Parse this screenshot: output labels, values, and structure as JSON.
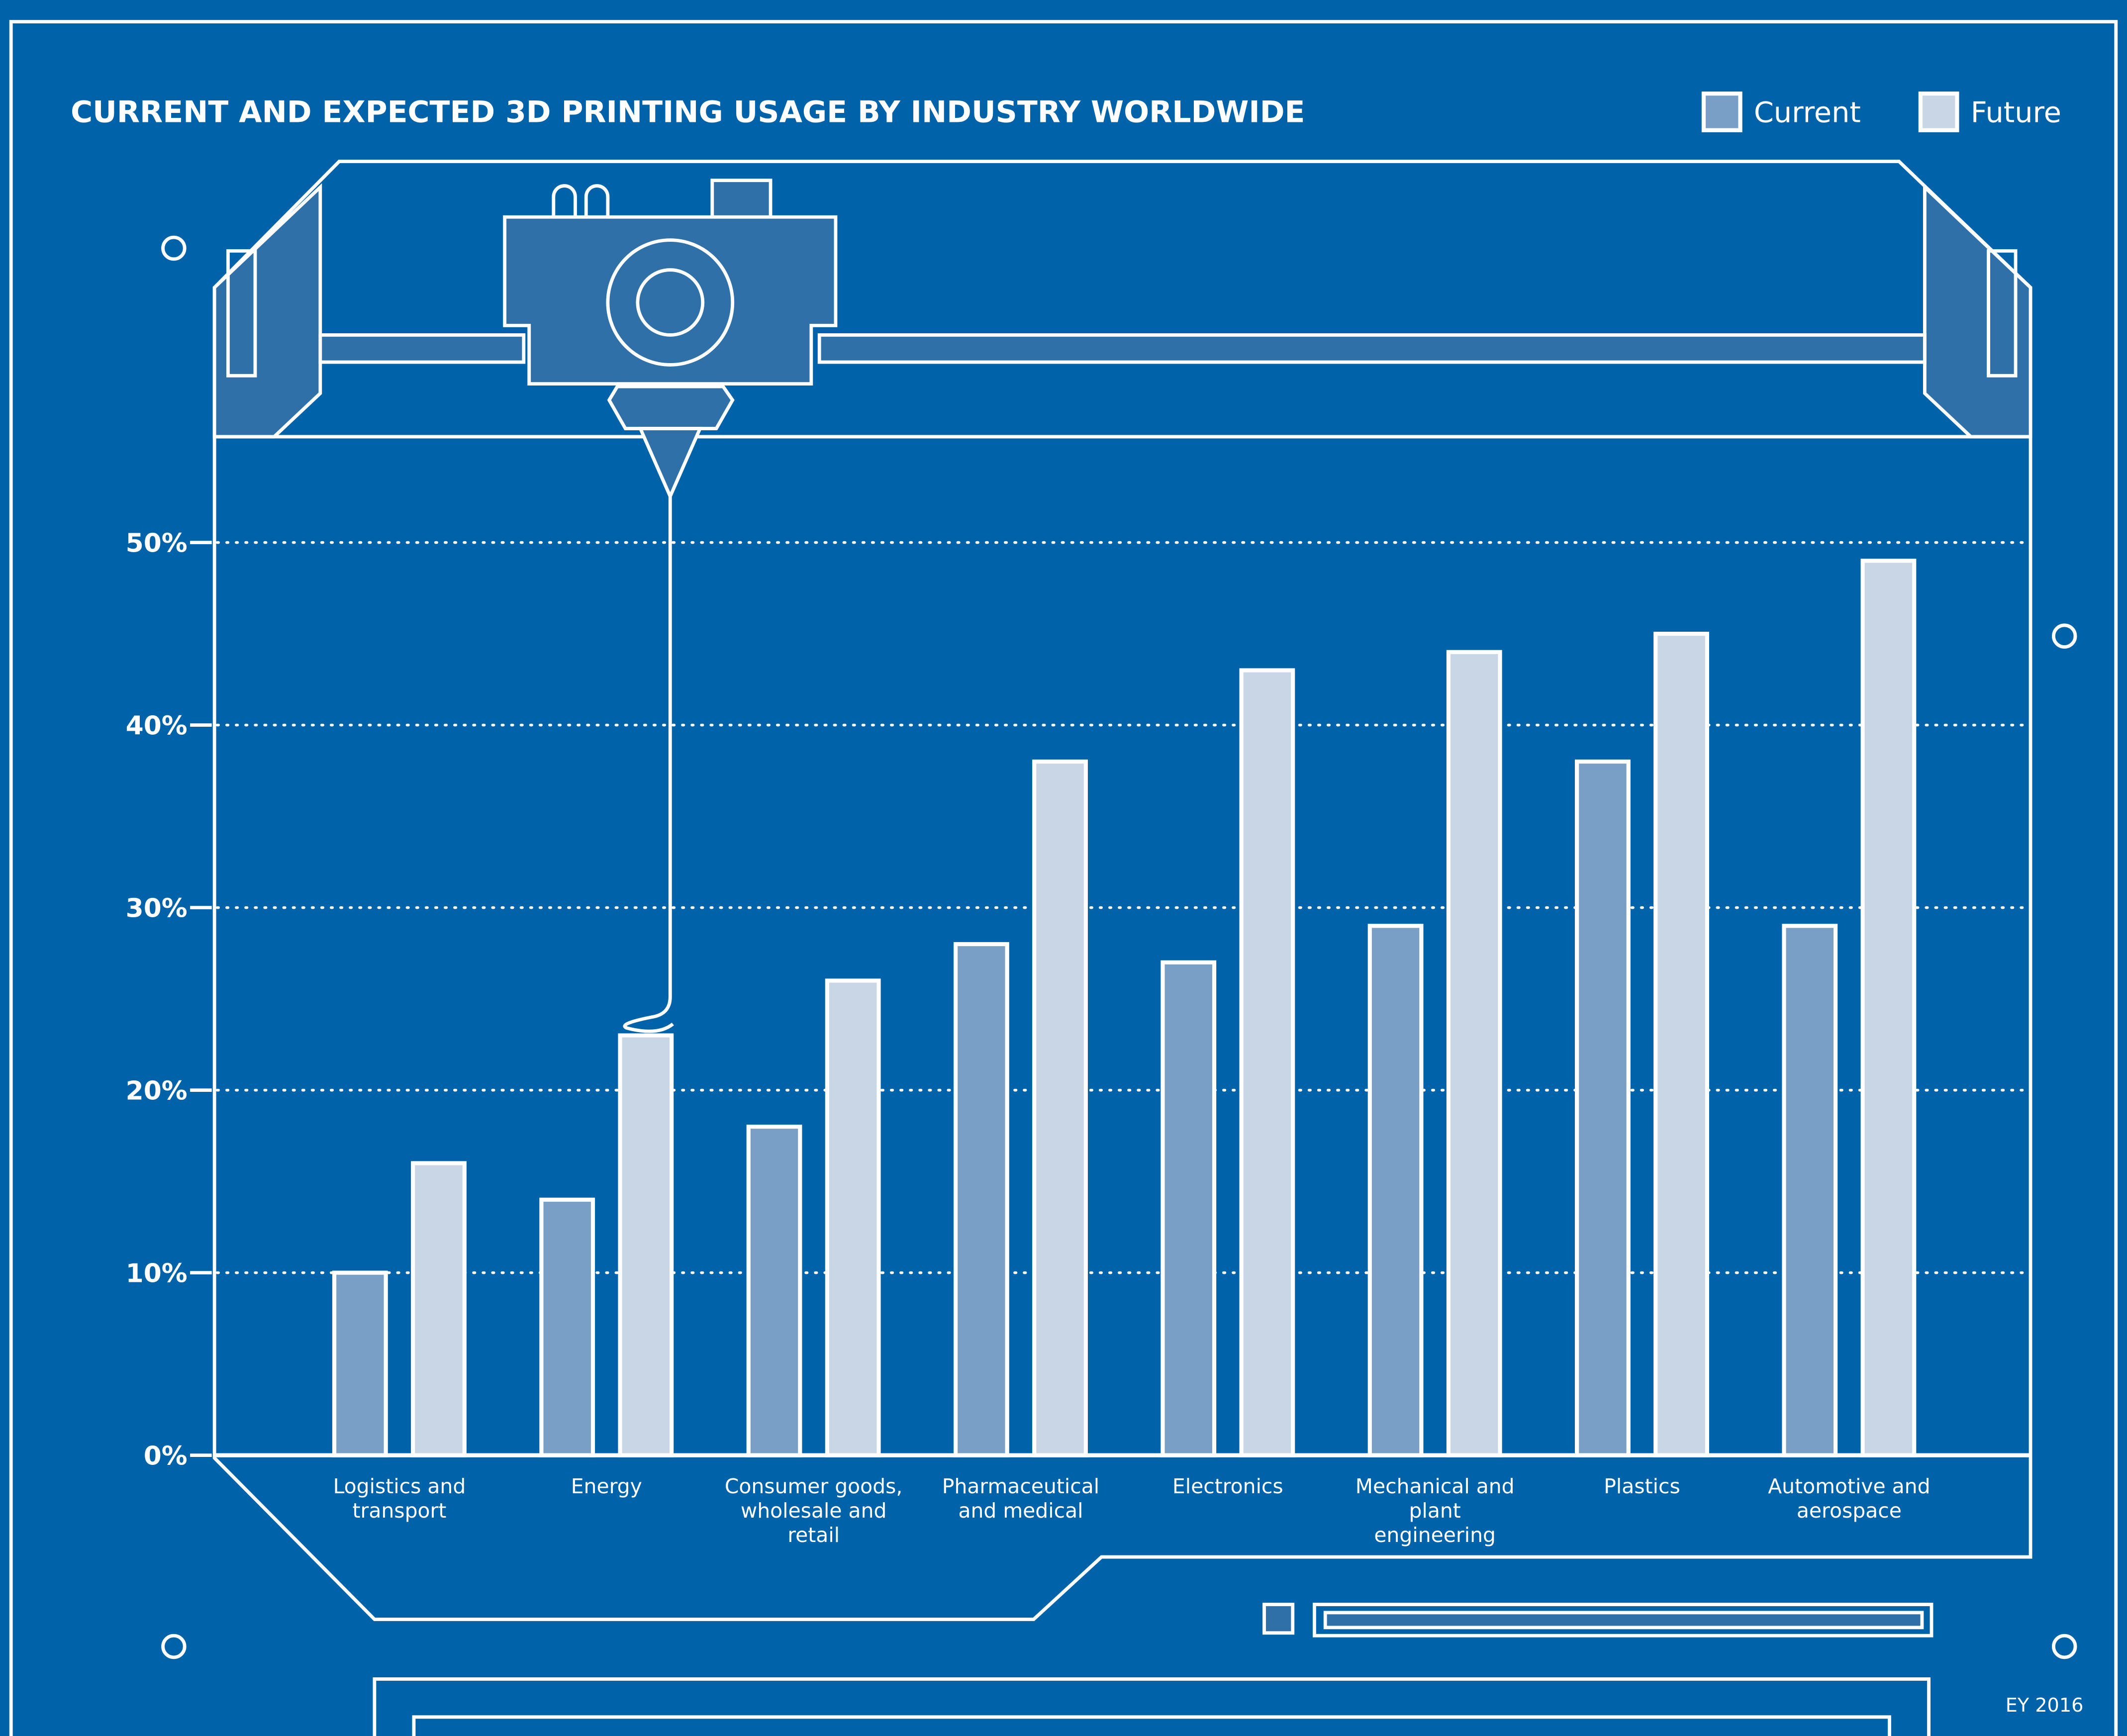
{
  "chart_data": {
    "type": "bar",
    "title": "CURRENT AND EXPECTED 3D PRINTING USAGE BY INDUSTRY WORLDWIDE",
    "categories": [
      "Logistics and transport",
      "Energy",
      "Consumer goods, wholesale and retail",
      "Pharmaceutical and medical",
      "Electronics",
      "Mechanical and plant engineering",
      "Plastics",
      "Automotive and aerospace"
    ],
    "series": [
      {
        "name": "Current",
        "color": "#7a9fc7",
        "values": [
          10,
          14,
          18,
          28,
          27,
          29,
          38,
          29
        ]
      },
      {
        "name": "Future",
        "color": "#c8d6e6",
        "values": [
          16,
          23,
          26,
          38,
          43,
          44,
          45,
          49
        ]
      }
    ],
    "ylim": [
      0,
      50
    ],
    "yticks": [
      {
        "value": 0,
        "label": "0%"
      },
      {
        "value": 10,
        "label": "10%"
      },
      {
        "value": 20,
        "label": "20%"
      },
      {
        "value": 30,
        "label": "30%"
      },
      {
        "value": 40,
        "label": "40%"
      },
      {
        "value": 50,
        "label": "50%"
      }
    ],
    "grid": true,
    "legend": "top-right",
    "source": "EY 2016"
  }
}
